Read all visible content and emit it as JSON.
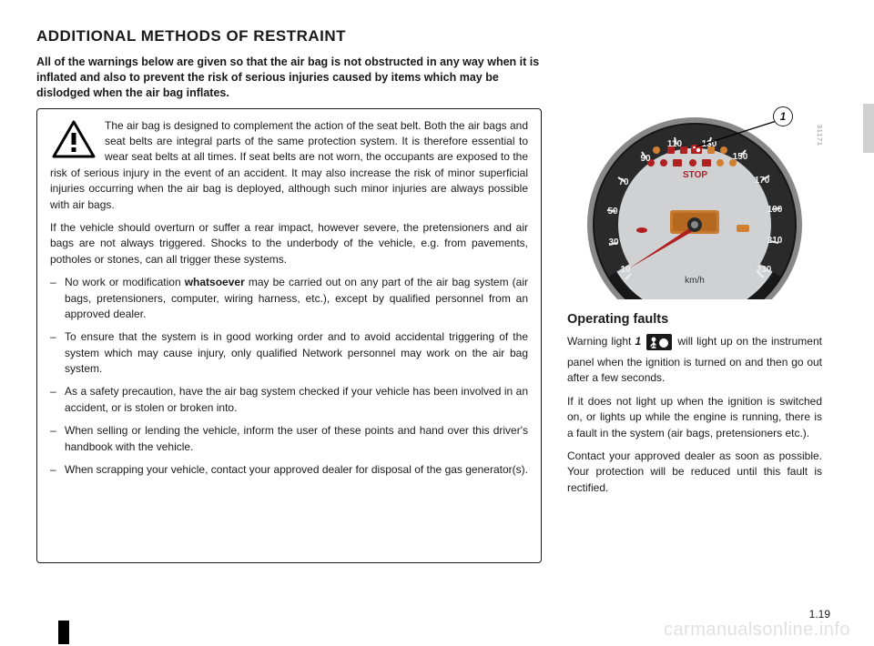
{
  "title": "ADDITIONAL METHODS OF RESTRAINT",
  "intro": "All of the warnings below are given so that the air bag is not obstructed in any way when it is inflated and also to prevent the risk of serious injuries caused by items which may be dislodged when the air bag inflates.",
  "warning_box": {
    "lead": "The air bag is designed to complement the action of the seat belt. Both the air bags and seat belts are integral parts of the same protection system. It is therefore essential to wear seat belts at all times. If seat belts are not worn, the occupants are exposed to the risk of serious injury in the event of an accident. It may also increase the risk of minor superficial injuries occurring when the air bag is deployed, although such minor injuries are always possible with air bags.",
    "para2": "If the vehicle should overturn or suffer a rear impact, however severe, the pretensioners and air bags are not always triggered. Shocks to the underbody of the vehicle, e.g. from pavements, potholes or stones, can all trigger these systems.",
    "items": [
      "No work or modification <b>whatsoever</b> may be carried out on any part of the air bag system (air bags, pretensioners, computer, wiring harness, etc.), except by qualified personnel from an approved dealer.",
      "To ensure that the system is in good working order and to avoid accidental triggering of the system which may cause injury, only qualified Network personnel may work on the air bag system.",
      "As a safety precaution, have the air bag system checked if your vehicle has been involved in an accident, or is stolen or broken into.",
      "When selling or lending the vehicle, inform the user of these points and hand over this driver's handbook with the vehicle.",
      "When scrapping your vehicle, contact your approved dealer for disposal of the gas generator(s)."
    ]
  },
  "right": {
    "image_id": "31171",
    "callout_number": "1",
    "subheading": "Operating faults",
    "para1_pre": "Warning light ",
    "para1_num": "1",
    "para1_post": " will light up on the instrument panel when the ignition is turned on and then go out after a few seconds.",
    "para2": "If it does not light up when the ignition is switched on, or lights up while the engine is running, there is a fault in the system (air bags, pretensioners etc.).",
    "para3": "Contact your approved dealer as soon as possible. Your protection will be reduced until this fault is rectified."
  },
  "gauge": {
    "bg_dark": "#2a2a2a",
    "bg_light": "#cfd1d3",
    "red": "#b02020",
    "orange": "#d08030",
    "numbers": [
      "10",
      "30",
      "50",
      "70",
      "90",
      "110",
      "130",
      "150",
      "170",
      "190",
      "210",
      "230"
    ],
    "unit": "km/h",
    "stop_label": "STOP"
  },
  "page_number": "1.19",
  "watermark": "carmanualsonline.info"
}
